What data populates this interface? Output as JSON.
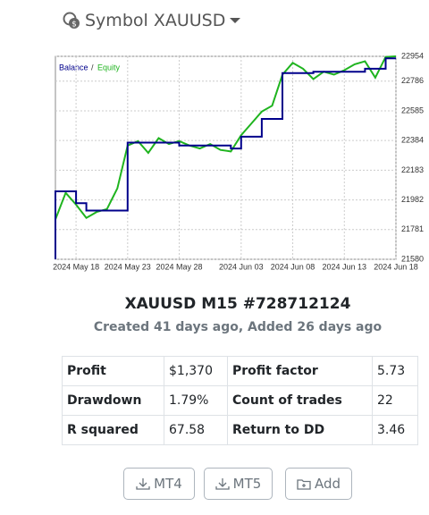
{
  "header": {
    "title": "Symbol XAUUSD"
  },
  "chart_data": {
    "type": "line",
    "legend_separator": "/",
    "series": [
      {
        "name": "Balance",
        "color": "#00008b",
        "x": [
          "2024-05-16",
          "2024-05-16",
          "2024-05-18",
          "2024-05-18",
          "2024-05-19",
          "2024-05-19",
          "2024-05-23",
          "2024-05-23",
          "2024-05-28",
          "2024-05-28",
          "2024-06-02",
          "2024-06-02",
          "2024-06-03",
          "2024-06-03",
          "2024-06-05",
          "2024-06-05",
          "2024-06-07",
          "2024-06-07",
          "2024-06-10",
          "2024-06-10",
          "2024-06-15",
          "2024-06-15",
          "2024-06-17",
          "2024-06-17",
          "2024-06-18"
        ],
        "values": [
          21580,
          22040,
          22040,
          21960,
          21960,
          21910,
          21910,
          22370,
          22370,
          22350,
          22350,
          22330,
          22330,
          22410,
          22410,
          22530,
          22530,
          22840,
          22840,
          22850,
          22850,
          22870,
          22870,
          22940,
          22940
        ]
      },
      {
        "name": "Equity",
        "color": "#1fb41f",
        "x": [
          "2024-05-16",
          "2024-05-17",
          "2024-05-18",
          "2024-05-19",
          "2024-05-20",
          "2024-05-21",
          "2024-05-22",
          "2024-05-23",
          "2024-05-24",
          "2024-05-25",
          "2024-05-26",
          "2024-05-27",
          "2024-05-28",
          "2024-05-29",
          "2024-05-30",
          "2024-05-31",
          "2024-06-01",
          "2024-06-02",
          "2024-06-03",
          "2024-06-04",
          "2024-06-05",
          "2024-06-06",
          "2024-06-07",
          "2024-06-08",
          "2024-06-09",
          "2024-06-10",
          "2024-06-11",
          "2024-06-12",
          "2024-06-13",
          "2024-06-14",
          "2024-06-15",
          "2024-06-16",
          "2024-06-17",
          "2024-06-18"
        ],
        "values": [
          21850,
          22030,
          21950,
          21860,
          21900,
          21920,
          22060,
          22350,
          22380,
          22300,
          22400,
          22360,
          22380,
          22350,
          22330,
          22360,
          22320,
          22310,
          22420,
          22500,
          22580,
          22620,
          22830,
          22910,
          22870,
          22800,
          22850,
          22830,
          22860,
          22900,
          22920,
          22810,
          22950,
          22954
        ]
      }
    ],
    "xlim": [
      "2024-05-16",
      "2024-06-18"
    ],
    "xticks": [
      {
        "value": "2024-05-18",
        "label": "2024 May 18"
      },
      {
        "value": "2024-05-23",
        "label": "2024 May 23"
      },
      {
        "value": "2024-05-28",
        "label": "2024 May 28"
      },
      {
        "value": "2024-06-03",
        "label": "2024 Jun 03"
      },
      {
        "value": "2024-06-08",
        "label": "2024 Jun 08"
      },
      {
        "value": "2024-06-13",
        "label": "2024 Jun 13"
      },
      {
        "value": "2024-06-18",
        "label": "2024 Jun 18"
      }
    ],
    "ylim": [
      21580,
      22954
    ],
    "yticks": [
      21580,
      21781,
      21982,
      22183,
      22384,
      22585,
      22786,
      22954
    ],
    "grid": true
  },
  "details": {
    "title": "XAUUSD M15 #728712124",
    "subtitle": "Created 41 days ago, Added 26 days ago"
  },
  "table": {
    "rows": [
      [
        "Profit",
        "$1,370",
        "Profit factor",
        "5.73"
      ],
      [
        "Drawdown",
        "1.79%",
        "Count of trades",
        "22"
      ],
      [
        "R squared",
        "67.58",
        "Return to DD",
        "3.46"
      ]
    ]
  },
  "buttons": [
    "MT4",
    "MT5",
    "Add"
  ]
}
